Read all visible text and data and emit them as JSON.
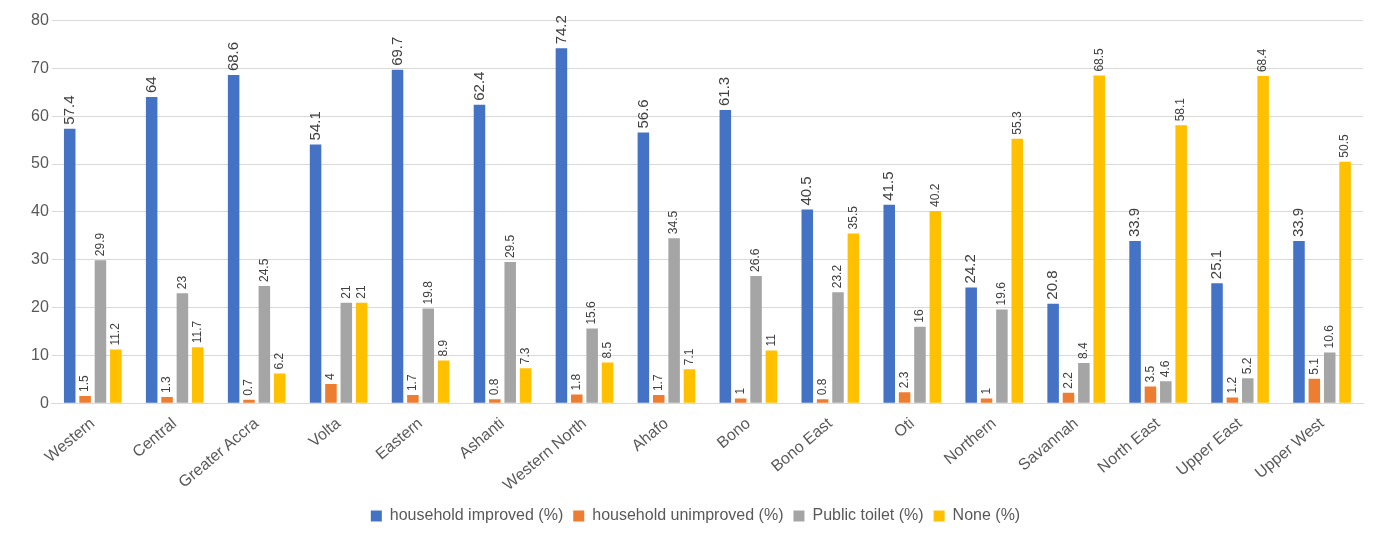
{
  "chart_data": {
    "type": "bar",
    "categories": [
      "Western",
      "Central",
      "Greater Accra",
      "Volta",
      "Eastern",
      "Ashanti",
      "Western North",
      "Ahafo",
      "Bono",
      "Bono East",
      "Oti",
      "Northern",
      "Savannah",
      "North East",
      "Upper East",
      "Upper West"
    ],
    "series": [
      {
        "name": "household improved (%)",
        "color": "#4472c4",
        "values": [
          57.4,
          64,
          68.6,
          54.1,
          69.7,
          62.4,
          74.2,
          56.6,
          61.3,
          40.5,
          41.5,
          24.2,
          20.8,
          33.9,
          25.1,
          33.9
        ]
      },
      {
        "name": "household unimproved (%)",
        "color": "#ed7d31",
        "values": [
          1.5,
          1.3,
          0.7,
          4,
          1.7,
          0.8,
          1.8,
          1.7,
          1,
          0.8,
          2.3,
          1,
          2.2,
          3.5,
          1.2,
          5.1
        ]
      },
      {
        "name": "Public toilet (%)",
        "color": "#a5a5a5",
        "values": [
          29.9,
          23,
          24.5,
          21,
          19.8,
          29.5,
          15.6,
          34.5,
          26.6,
          23.2,
          16,
          19.6,
          8.4,
          4.6,
          5.2,
          10.6
        ]
      },
      {
        "name": "None (%)",
        "color": "#ffc000",
        "values": [
          11.2,
          11.7,
          6.2,
          21,
          8.9,
          7.3,
          8.5,
          7.1,
          11,
          35.5,
          40.2,
          55.3,
          68.5,
          58.1,
          68.4,
          50.5
        ]
      }
    ],
    "ylim": [
      0,
      80
    ],
    "yticks": [
      0,
      10,
      20,
      30,
      40,
      50,
      60,
      70,
      80
    ],
    "grid": "y",
    "legend": "bottom",
    "data_labels": true
  }
}
